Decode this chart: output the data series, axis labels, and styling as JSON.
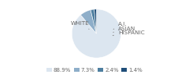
{
  "labels": [
    "WHITE",
    "A.I.",
    "ASIAN",
    "HISPANIC"
  ],
  "values": [
    88.9,
    7.3,
    2.4,
    1.4
  ],
  "colors": [
    "#dce6f0",
    "#8eaec9",
    "#4e7fa0",
    "#1f4e79"
  ],
  "legend_labels": [
    "88.9%",
    "7.3%",
    "2.4%",
    "1.4%"
  ],
  "startangle": 90,
  "bg_color": "#ffffff",
  "label_fontsize": 5.2,
  "legend_fontsize": 5.0,
  "label_color": "#666666",
  "arrow_color": "#888888"
}
